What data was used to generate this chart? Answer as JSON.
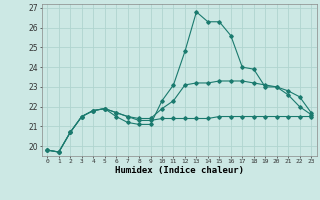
{
  "xlabel": "Humidex (Indice chaleur)",
  "background_color": "#cce8e4",
  "grid_color": "#b0d4cf",
  "line_color": "#1a7a6e",
  "x_values": [
    0,
    1,
    2,
    3,
    4,
    5,
    6,
    7,
    8,
    9,
    10,
    11,
    12,
    13,
    14,
    15,
    16,
    17,
    18,
    19,
    20,
    21,
    22,
    23
  ],
  "line1": [
    19.8,
    19.7,
    20.7,
    21.5,
    21.8,
    21.9,
    21.7,
    21.5,
    21.3,
    21.3,
    21.4,
    21.4,
    21.4,
    21.4,
    21.4,
    21.5,
    21.5,
    21.5,
    21.5,
    21.5,
    21.5,
    21.5,
    21.5,
    21.5
  ],
  "line2": [
    19.8,
    19.7,
    20.7,
    21.5,
    21.8,
    21.9,
    21.5,
    21.2,
    21.1,
    21.1,
    22.3,
    23.1,
    24.8,
    26.8,
    26.3,
    26.3,
    25.6,
    24.0,
    23.9,
    23.0,
    23.0,
    22.6,
    22.0,
    21.6
  ],
  "line3": [
    19.8,
    19.7,
    20.7,
    21.5,
    21.8,
    21.9,
    21.7,
    21.5,
    21.4,
    21.4,
    21.9,
    22.3,
    23.1,
    23.2,
    23.2,
    23.3,
    23.3,
    23.3,
    23.2,
    23.1,
    23.0,
    22.8,
    22.5,
    21.7
  ],
  "ylim": [
    19.5,
    27.2
  ],
  "yticks": [
    20,
    21,
    22,
    23,
    24,
    25,
    26,
    27
  ],
  "xticks": [
    0,
    1,
    2,
    3,
    4,
    5,
    6,
    7,
    8,
    9,
    10,
    11,
    12,
    13,
    14,
    15,
    16,
    17,
    18,
    19,
    20,
    21,
    22,
    23
  ]
}
